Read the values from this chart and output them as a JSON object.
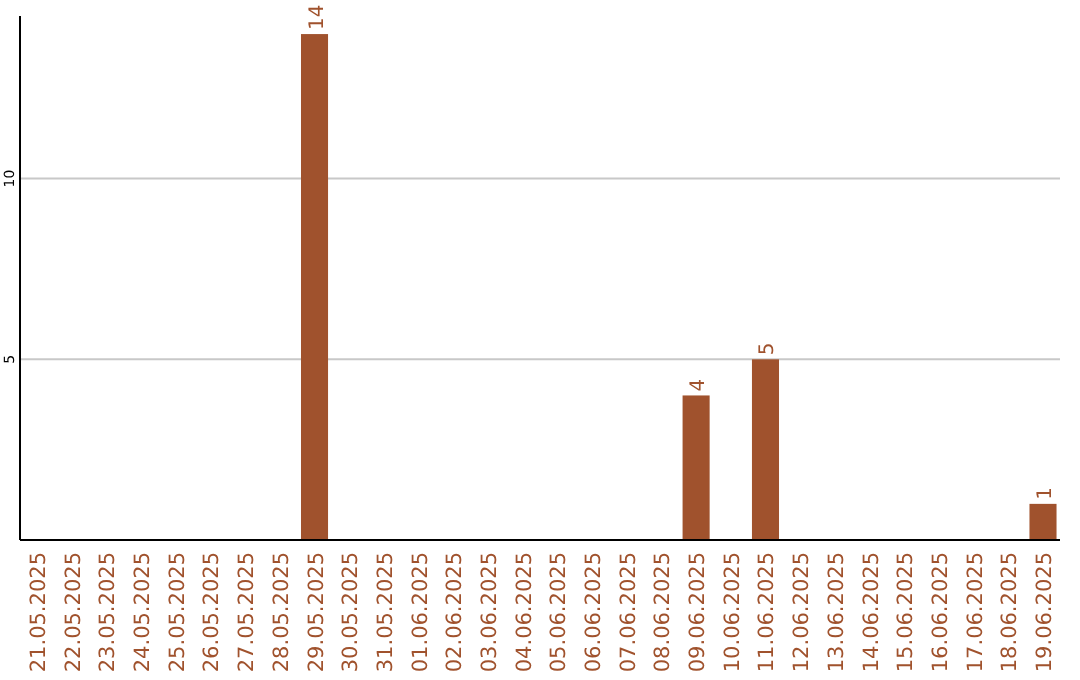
{
  "chart_data": {
    "type": "bar",
    "categories": [
      "21.05.2025",
      "22.05.2025",
      "23.05.2025",
      "24.05.2025",
      "25.05.2025",
      "26.05.2025",
      "27.05.2025",
      "28.05.2025",
      "29.05.2025",
      "30.05.2025",
      "31.05.2025",
      "01.06.2025",
      "02.06.2025",
      "03.06.2025",
      "04.06.2025",
      "05.06.2025",
      "06.06.2025",
      "07.06.2025",
      "08.06.2025",
      "09.06.2025",
      "10.06.2025",
      "11.06.2025",
      "12.06.2025",
      "13.06.2025",
      "14.06.2025",
      "15.06.2025",
      "16.06.2025",
      "17.06.2025",
      "18.06.2025",
      "19.06.2025"
    ],
    "values": [
      0,
      0,
      0,
      0,
      0,
      0,
      0,
      0,
      14,
      0,
      0,
      0,
      0,
      0,
      0,
      0,
      0,
      0,
      0,
      4,
      0,
      5,
      0,
      0,
      0,
      0,
      0,
      0,
      0,
      1
    ],
    "value_labels": [
      null,
      null,
      null,
      null,
      null,
      null,
      null,
      null,
      "14",
      null,
      null,
      null,
      null,
      null,
      null,
      null,
      null,
      null,
      null,
      "4",
      null,
      "5",
      null,
      null,
      null,
      null,
      null,
      null,
      null,
      "1"
    ],
    "color": "#a0522d",
    "ylim": [
      0,
      14.5
    ],
    "yticks": [
      5,
      10
    ],
    "grid": "y"
  }
}
